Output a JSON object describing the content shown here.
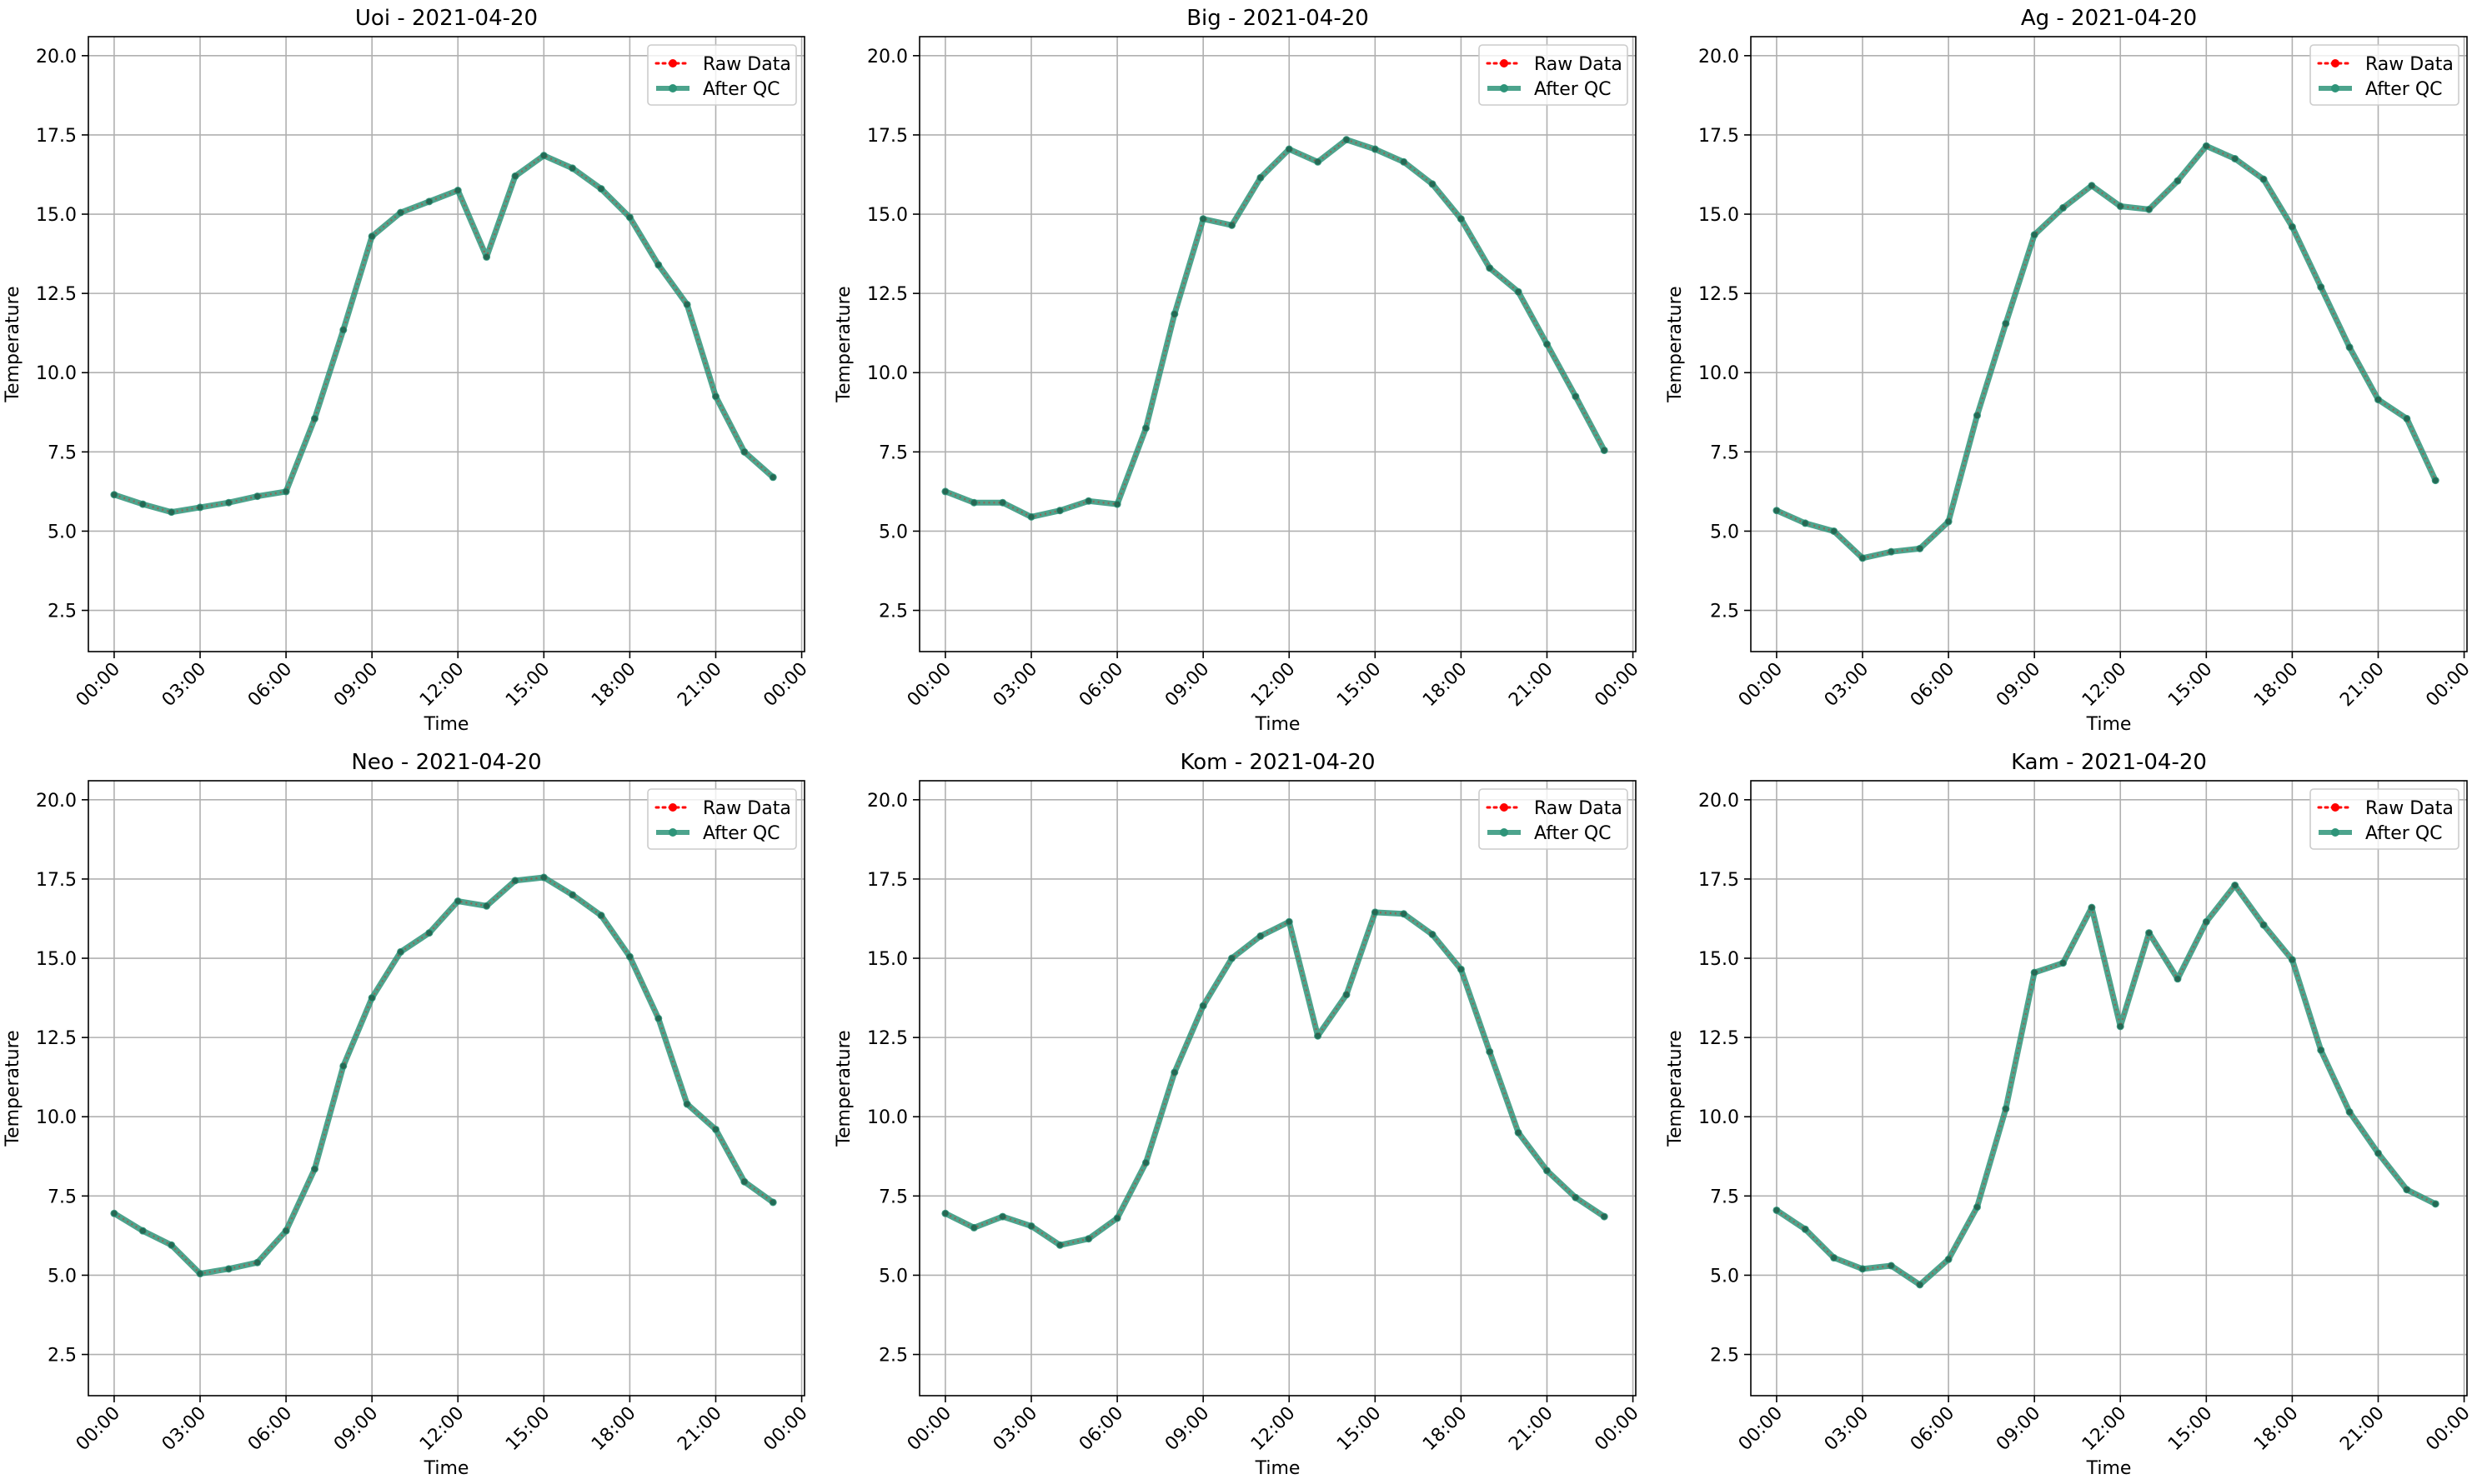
{
  "chart_data": [
    {
      "type": "line",
      "title": "Uoi - 2021-04-20",
      "xlabel": "Time",
      "ylabel": "Temperature",
      "ylim": [
        1.2,
        20.6
      ],
      "yticks": [
        "2.5",
        "5.0",
        "7.5",
        "10.0",
        "12.5",
        "15.0",
        "17.5",
        "20.0"
      ],
      "xticks": [
        "00:00",
        "03:00",
        "06:00",
        "09:00",
        "12:00",
        "15:00",
        "18:00",
        "21:00",
        "00:00"
      ],
      "xlim_hours": [
        -0.9,
        24.1
      ],
      "x": [
        0,
        1,
        2,
        3,
        4,
        5,
        6,
        7,
        8,
        9,
        10,
        11,
        12,
        13,
        14,
        15,
        16,
        17,
        18,
        19,
        20,
        21,
        22,
        23
      ],
      "grid": true,
      "legend": "upper right",
      "series": [
        {
          "name": "Raw Data",
          "color": "#ff0000",
          "values": [
            6.15,
            5.85,
            5.6,
            5.75,
            5.9,
            6.1,
            6.25,
            8.55,
            11.35,
            14.3,
            15.05,
            15.4,
            15.75,
            13.65,
            16.2,
            16.85,
            16.45,
            15.8,
            14.9,
            13.4,
            12.15,
            9.25,
            7.5,
            6.7
          ]
        },
        {
          "name": "After QC",
          "color": "#2e9479",
          "values": [
            6.15,
            5.85,
            5.6,
            5.75,
            5.9,
            6.1,
            6.25,
            8.55,
            11.35,
            14.3,
            15.05,
            15.4,
            15.75,
            13.65,
            16.2,
            16.85,
            16.45,
            15.8,
            14.9,
            13.4,
            12.15,
            9.25,
            7.5,
            6.7
          ]
        }
      ]
    },
    {
      "type": "line",
      "title": "Big - 2021-04-20",
      "xlabel": "Time",
      "ylabel": "Temperature",
      "ylim": [
        1.2,
        20.6
      ],
      "yticks": [
        "2.5",
        "5.0",
        "7.5",
        "10.0",
        "12.5",
        "15.0",
        "17.5",
        "20.0"
      ],
      "xticks": [
        "00:00",
        "03:00",
        "06:00",
        "09:00",
        "12:00",
        "15:00",
        "18:00",
        "21:00",
        "00:00"
      ],
      "xlim_hours": [
        -0.9,
        24.1
      ],
      "x": [
        0,
        1,
        2,
        3,
        4,
        5,
        6,
        7,
        8,
        9,
        10,
        11,
        12,
        13,
        14,
        15,
        16,
        17,
        18,
        19,
        20,
        21,
        22,
        23
      ],
      "grid": true,
      "legend": "upper right",
      "series": [
        {
          "name": "Raw Data",
          "color": "#ff0000",
          "values": [
            6.25,
            5.9,
            5.9,
            5.45,
            5.65,
            5.95,
            5.85,
            8.25,
            11.85,
            14.85,
            14.65,
            16.15,
            17.05,
            16.65,
            17.35,
            17.05,
            16.65,
            15.95,
            14.85,
            13.3,
            12.55,
            10.9,
            9.25,
            7.55
          ]
        },
        {
          "name": "After QC",
          "color": "#2e9479",
          "values": [
            6.25,
            5.9,
            5.9,
            5.45,
            5.65,
            5.95,
            5.85,
            8.25,
            11.85,
            14.85,
            14.65,
            16.15,
            17.05,
            16.65,
            17.35,
            17.05,
            16.65,
            15.95,
            14.85,
            13.3,
            12.55,
            10.9,
            9.25,
            7.55
          ]
        }
      ]
    },
    {
      "type": "line",
      "title": "Ag - 2021-04-20",
      "xlabel": "Time",
      "ylabel": "Temperature",
      "ylim": [
        1.2,
        20.6
      ],
      "yticks": [
        "2.5",
        "5.0",
        "7.5",
        "10.0",
        "12.5",
        "15.0",
        "17.5",
        "20.0"
      ],
      "xticks": [
        "00:00",
        "03:00",
        "06:00",
        "09:00",
        "12:00",
        "15:00",
        "18:00",
        "21:00",
        "00:00"
      ],
      "xlim_hours": [
        -0.9,
        24.1
      ],
      "x": [
        0,
        1,
        2,
        3,
        4,
        5,
        6,
        7,
        8,
        9,
        10,
        11,
        12,
        13,
        14,
        15,
        16,
        17,
        18,
        19,
        20,
        21,
        22,
        23
      ],
      "grid": true,
      "legend": "upper right",
      "series": [
        {
          "name": "Raw Data",
          "color": "#ff0000",
          "values": [
            5.65,
            5.25,
            5.0,
            4.15,
            4.35,
            4.45,
            5.3,
            8.65,
            11.55,
            14.35,
            15.2,
            15.9,
            15.25,
            15.15,
            16.05,
            17.15,
            16.75,
            16.1,
            14.6,
            12.7,
            10.8,
            9.15,
            8.55,
            6.6
          ]
        },
        {
          "name": "After QC",
          "color": "#2e9479",
          "values": [
            5.65,
            5.25,
            5.0,
            4.15,
            4.35,
            4.45,
            5.3,
            8.65,
            11.55,
            14.35,
            15.2,
            15.9,
            15.25,
            15.15,
            16.05,
            17.15,
            16.75,
            16.1,
            14.6,
            12.7,
            10.8,
            9.15,
            8.55,
            6.6
          ]
        }
      ]
    },
    {
      "type": "line",
      "title": "Neo - 2021-04-20",
      "xlabel": "Time",
      "ylabel": "Temperature",
      "ylim": [
        1.2,
        20.6
      ],
      "yticks": [
        "2.5",
        "5.0",
        "7.5",
        "10.0",
        "12.5",
        "15.0",
        "17.5",
        "20.0"
      ],
      "xticks": [
        "00:00",
        "03:00",
        "06:00",
        "09:00",
        "12:00",
        "15:00",
        "18:00",
        "21:00",
        "00:00"
      ],
      "xlim_hours": [
        -0.9,
        24.1
      ],
      "x": [
        0,
        1,
        2,
        3,
        4,
        5,
        6,
        7,
        8,
        9,
        10,
        11,
        12,
        13,
        14,
        15,
        16,
        17,
        18,
        19,
        20,
        21,
        22,
        23
      ],
      "grid": true,
      "legend": "upper right",
      "series": [
        {
          "name": "Raw Data",
          "color": "#ff0000",
          "values": [
            6.95,
            6.4,
            5.95,
            5.05,
            5.2,
            5.4,
            6.4,
            8.35,
            11.6,
            13.75,
            15.2,
            15.8,
            16.8,
            16.65,
            17.45,
            17.55,
            17.0,
            16.35,
            15.05,
            13.1,
            10.4,
            9.6,
            7.95,
            7.3
          ]
        },
        {
          "name": "After QC",
          "color": "#2e9479",
          "values": [
            6.95,
            6.4,
            5.95,
            5.05,
            5.2,
            5.4,
            6.4,
            8.35,
            11.6,
            13.75,
            15.2,
            15.8,
            16.8,
            16.65,
            17.45,
            17.55,
            17.0,
            16.35,
            15.05,
            13.1,
            10.4,
            9.6,
            7.95,
            7.3
          ]
        }
      ]
    },
    {
      "type": "line",
      "title": "Kom - 2021-04-20",
      "xlabel": "Time",
      "ylabel": "Temperature",
      "ylim": [
        1.2,
        20.6
      ],
      "yticks": [
        "2.5",
        "5.0",
        "7.5",
        "10.0",
        "12.5",
        "15.0",
        "17.5",
        "20.0"
      ],
      "xticks": [
        "00:00",
        "03:00",
        "06:00",
        "09:00",
        "12:00",
        "15:00",
        "18:00",
        "21:00",
        "00:00"
      ],
      "xlim_hours": [
        -0.9,
        24.1
      ],
      "x": [
        0,
        1,
        2,
        3,
        4,
        5,
        6,
        7,
        8,
        9,
        10,
        11,
        12,
        13,
        14,
        15,
        16,
        17,
        18,
        19,
        20,
        21,
        22,
        23
      ],
      "grid": true,
      "legend": "upper right",
      "series": [
        {
          "name": "Raw Data",
          "color": "#ff0000",
          "values": [
            6.95,
            6.5,
            6.85,
            6.55,
            5.95,
            6.15,
            6.8,
            8.55,
            11.4,
            13.5,
            15.0,
            15.7,
            16.15,
            12.55,
            13.85,
            16.45,
            16.4,
            15.75,
            14.65,
            12.05,
            9.5,
            8.3,
            7.45,
            6.85
          ]
        },
        {
          "name": "After QC",
          "color": "#2e9479",
          "values": [
            6.95,
            6.5,
            6.85,
            6.55,
            5.95,
            6.15,
            6.8,
            8.55,
            11.4,
            13.5,
            15.0,
            15.7,
            16.15,
            12.55,
            13.85,
            16.45,
            16.4,
            15.75,
            14.65,
            12.05,
            9.5,
            8.3,
            7.45,
            6.85
          ]
        }
      ]
    },
    {
      "type": "line",
      "title": "Kam - 2021-04-20",
      "xlabel": "Time",
      "ylabel": "Temperature",
      "ylim": [
        1.2,
        20.6
      ],
      "yticks": [
        "2.5",
        "5.0",
        "7.5",
        "10.0",
        "12.5",
        "15.0",
        "17.5",
        "20.0"
      ],
      "xticks": [
        "00:00",
        "03:00",
        "06:00",
        "09:00",
        "12:00",
        "15:00",
        "18:00",
        "21:00",
        "00:00"
      ],
      "xlim_hours": [
        -0.9,
        24.1
      ],
      "x": [
        0,
        1,
        2,
        3,
        4,
        5,
        6,
        7,
        8,
        9,
        10,
        11,
        12,
        13,
        14,
        15,
        16,
        17,
        18,
        19,
        20,
        21,
        22,
        23
      ],
      "grid": true,
      "legend": "upper right",
      "series": [
        {
          "name": "Raw Data",
          "color": "#ff0000",
          "values": [
            7.05,
            6.45,
            5.55,
            5.2,
            5.3,
            4.7,
            5.5,
            7.15,
            10.25,
            14.55,
            14.85,
            16.6,
            12.85,
            15.8,
            14.35,
            16.15,
            17.3,
            16.05,
            14.95,
            12.1,
            10.15,
            8.85,
            7.7,
            7.25
          ]
        },
        {
          "name": "After QC",
          "color": "#2e9479",
          "values": [
            7.05,
            6.45,
            5.55,
            5.2,
            5.3,
            4.7,
            5.5,
            7.15,
            10.25,
            14.55,
            14.85,
            16.6,
            12.85,
            15.8,
            14.35,
            16.15,
            17.3,
            16.05,
            14.95,
            12.1,
            10.15,
            8.85,
            7.7,
            7.25
          ]
        }
      ]
    }
  ]
}
